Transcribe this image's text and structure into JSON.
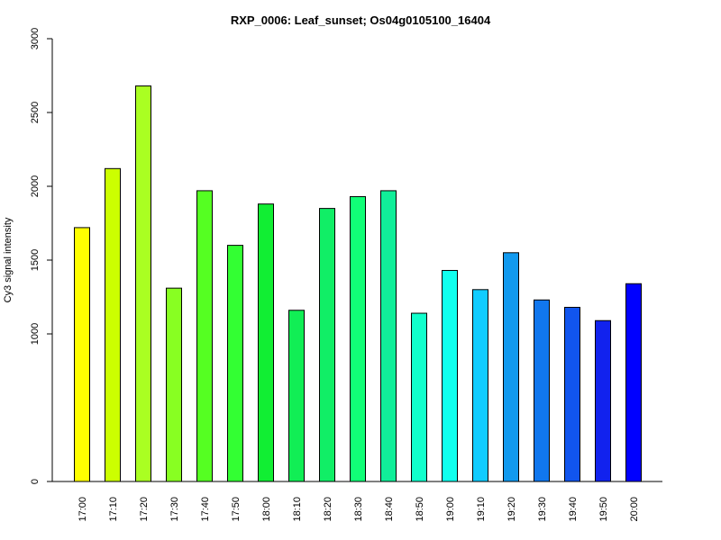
{
  "chart_data": {
    "type": "bar",
    "title": "RXP_0006: Leaf_sunset; Os04g0105100_16404",
    "xlabel": "",
    "ylabel": "Cy3 signal intensity",
    "ylim": [
      0,
      3000
    ],
    "yticks": [
      0,
      1000,
      1500,
      2000,
      2500,
      3000
    ],
    "categories": [
      "17:00",
      "17:10",
      "17:20",
      "17:30",
      "17:40",
      "17:50",
      "18:00",
      "18:10",
      "18:20",
      "18:30",
      "18:40",
      "18:50",
      "19:00",
      "19:10",
      "19:20",
      "19:30",
      "19:40",
      "19:50",
      "20:00"
    ],
    "values": [
      1720,
      2120,
      2680,
      1310,
      1970,
      1600,
      1880,
      1160,
      1850,
      1930,
      1970,
      1140,
      1430,
      1300,
      1550,
      1230,
      1180,
      1090,
      1340
    ],
    "colors": [
      "#ffff00",
      "#ccff00",
      "#aaff22",
      "#88ff22",
      "#55ff22",
      "#33ff33",
      "#11ee33",
      "#11ee55",
      "#11ee66",
      "#11ff77",
      "#11ee99",
      "#11ffcc",
      "#11ffee",
      "#11ccff",
      "#1199ee",
      "#1177ee",
      "#1155ee",
      "#1122ee",
      "#0000ff"
    ],
    "grid": false,
    "legend": "none"
  }
}
